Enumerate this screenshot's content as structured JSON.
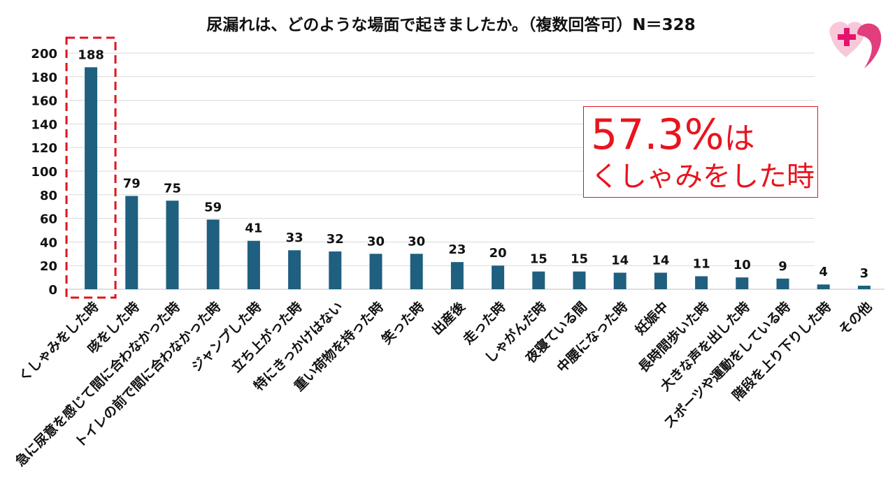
{
  "title": "尿漏れは、どのような場面で起きましたか。（複数回答可）N＝328",
  "callout": {
    "line1_number": "57.3%",
    "line1_suffix": "は",
    "line2": "くしゃみをした時"
  },
  "colors": {
    "bar": "#1f5f80",
    "highlight": "#e0141e",
    "logo_pink": "#e23d7c",
    "grid": "#d9d9d9"
  },
  "logo_icon": "plus-heart-icon",
  "chart_data": {
    "type": "bar",
    "title": "尿漏れは、どのような場面で起きましたか。（複数回答可）N＝328",
    "xlabel": "",
    "ylabel": "",
    "ylim": [
      0,
      200
    ],
    "yticks": [
      0,
      20,
      40,
      60,
      80,
      100,
      120,
      140,
      160,
      180,
      200
    ],
    "grid": true,
    "legend": "none",
    "highlight_category_index": 0,
    "categories": [
      "くしゃみをした時",
      "咳をした時",
      "急に尿意を感じて間に合わなかった時",
      "トイレの前で間に合わなかった時",
      "ジャンプした時",
      "立ち上がった時",
      "特にきっかけはない",
      "重い荷物を持った時",
      "笑った時",
      "出産後",
      "走った時",
      "しゃがんだ時",
      "夜寝ている間",
      "中腰になった時",
      "妊娠中",
      "長時間歩いた時",
      "大きな声を出した時",
      "スポーツや運動をしている時",
      "階段を上り下りした時",
      "その他"
    ],
    "values": [
      188,
      79,
      75,
      59,
      41,
      33,
      32,
      30,
      30,
      23,
      20,
      15,
      15,
      14,
      14,
      11,
      10,
      9,
      4,
      3
    ]
  }
}
